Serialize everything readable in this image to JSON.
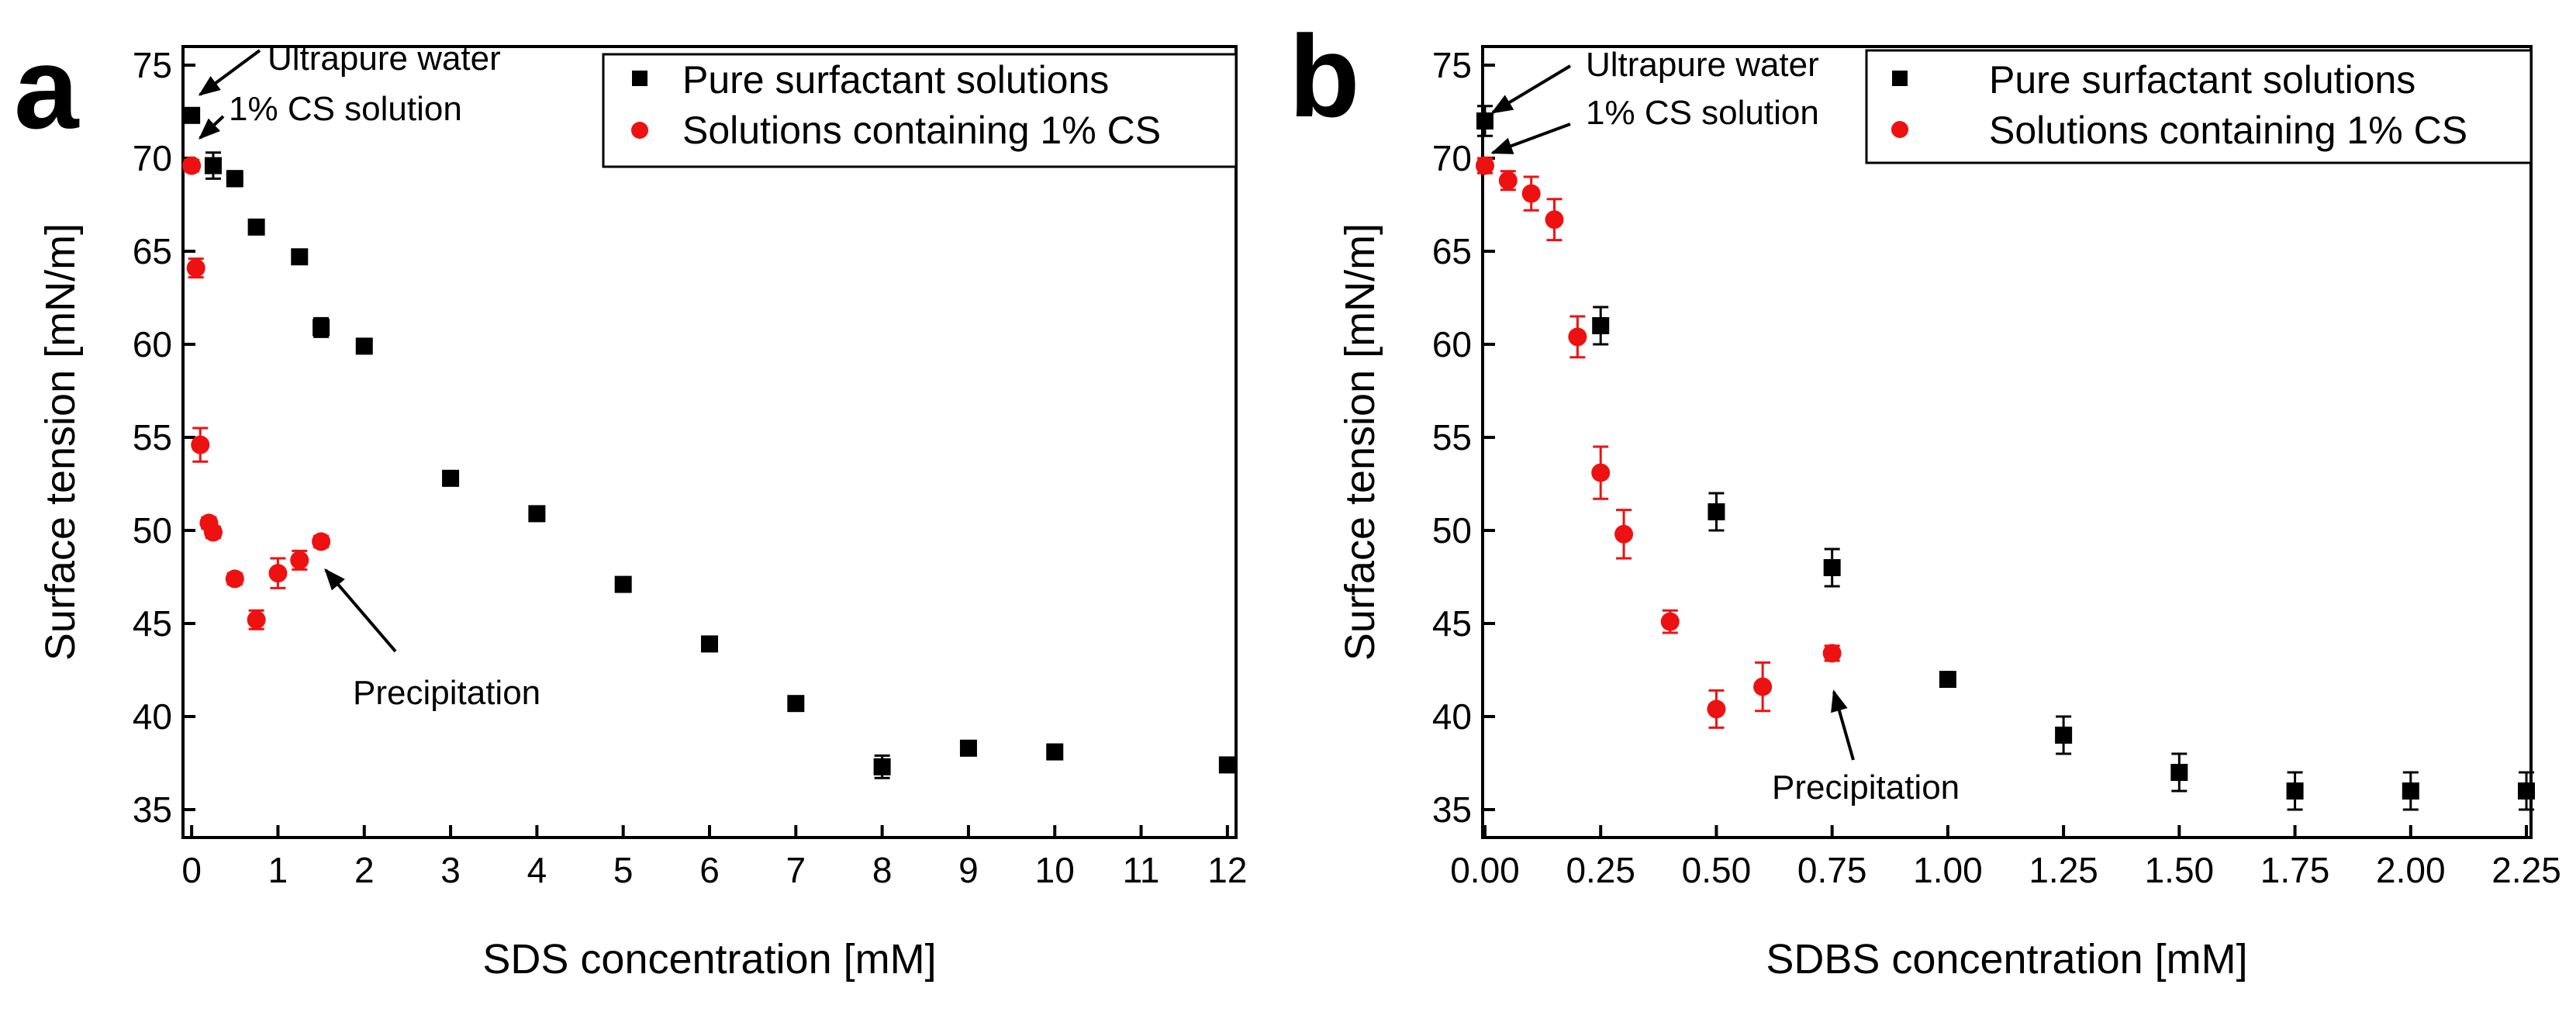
{
  "chart_data": [
    {
      "panel_letter": "a",
      "type": "scatter",
      "xlabel": "SDS concentration [mM]",
      "ylabel": "Surface tension [mN/m]",
      "xlim": [
        -0.1,
        12.1
      ],
      "ylim": [
        33.5,
        76
      ],
      "xticks": [
        0,
        1,
        2,
        3,
        4,
        5,
        6,
        7,
        8,
        9,
        10,
        11,
        12
      ],
      "yticks": [
        35,
        40,
        45,
        50,
        55,
        60,
        65,
        70,
        75
      ],
      "tick_decimals": 0,
      "legend_position": "top-right",
      "colors": {
        "pure": "#000000",
        "cs": "#ee1111"
      },
      "series": [
        {
          "name": "Pure surfactant solutions",
          "marker": "square",
          "color": "#000000",
          "points": [
            {
              "x": 0,
              "y": 72.3,
              "err": 0.3
            },
            {
              "x": 0.25,
              "y": 69.6,
              "err": 0.7
            },
            {
              "x": 0.5,
              "y": 68.9,
              "err": 0.4
            },
            {
              "x": 0.75,
              "y": 66.3,
              "err": 0.3
            },
            {
              "x": 1.25,
              "y": 64.7,
              "err": 0.3
            },
            {
              "x": 1.5,
              "y": 60.9,
              "err": 0.5
            },
            {
              "x": 2,
              "y": 59.9,
              "err": 0.2
            },
            {
              "x": 3,
              "y": 52.8,
              "err": 0.2
            },
            {
              "x": 4,
              "y": 50.9,
              "err": 0.2
            },
            {
              "x": 5,
              "y": 47.1,
              "err": 0.2
            },
            {
              "x": 6,
              "y": 43.9,
              "err": 0.2
            },
            {
              "x": 7,
              "y": 40.7,
              "err": 0.2
            },
            {
              "x": 8,
              "y": 37.3,
              "err": 0.6
            },
            {
              "x": 9,
              "y": 38.3,
              "err": 0.2
            },
            {
              "x": 10,
              "y": 38.1,
              "err": 0.2
            },
            {
              "x": 12,
              "y": 37.4,
              "err": 0.2
            }
          ]
        },
        {
          "name": "Solutions containing 1% CS",
          "marker": "circle",
          "color": "#ee1111",
          "points": [
            {
              "x": 0,
              "y": 69.6,
              "err": 0.3
            },
            {
              "x": 0.05,
              "y": 64.1,
              "err": 0.5
            },
            {
              "x": 0.1,
              "y": 54.6,
              "err": 0.9
            },
            {
              "x": 0.2,
              "y": 50.4,
              "err": 0.3
            },
            {
              "x": 0.25,
              "y": 49.9,
              "err": 0.3
            },
            {
              "x": 0.5,
              "y": 47.4,
              "err": 0.3
            },
            {
              "x": 0.75,
              "y": 45.2,
              "err": 0.5
            },
            {
              "x": 1,
              "y": 47.7,
              "err": 0.8
            },
            {
              "x": 1.25,
              "y": 48.4,
              "err": 0.5
            },
            {
              "x": 1.5,
              "y": 49.4,
              "err": 0.3
            }
          ]
        }
      ],
      "annotations": [
        {
          "text": "Ultrapure water",
          "x": 0,
          "y": 72.3
        },
        {
          "text": "1% CS solution",
          "x": 0.25,
          "y": 69.6
        },
        {
          "text": "Precipitation",
          "x": 1.5,
          "y": 49.4
        }
      ]
    },
    {
      "panel_letter": "b",
      "type": "scatter",
      "xlabel": "SDBS concentration [mM]",
      "ylabel": "Surface tension [mN/m]",
      "xlim": [
        -0.005,
        2.26
      ],
      "ylim": [
        33.5,
        76
      ],
      "xticks": [
        0,
        0.25,
        0.5,
        0.75,
        1,
        1.25,
        1.5,
        1.75,
        2,
        2.25
      ],
      "yticks": [
        35,
        40,
        45,
        50,
        55,
        60,
        65,
        70,
        75
      ],
      "tick_decimals": 2,
      "legend_position": "top-right",
      "colors": {
        "pure": "#000000",
        "cs": "#ee1111"
      },
      "series": [
        {
          "name": "Pure surfactant solutions",
          "marker": "square",
          "color": "#000000",
          "points": [
            {
              "x": 0,
              "y": 72.0,
              "err": 0.8
            },
            {
              "x": 0.25,
              "y": 61.0,
              "err": 1.0
            },
            {
              "x": 0.5,
              "y": 51.0,
              "err": 1.0
            },
            {
              "x": 0.75,
              "y": 48.0,
              "err": 1.0
            },
            {
              "x": 1.0,
              "y": 42.0,
              "err": 0.3
            },
            {
              "x": 1.25,
              "y": 39.0,
              "err": 1.0
            },
            {
              "x": 1.5,
              "y": 37.0,
              "err": 1.0
            },
            {
              "x": 1.75,
              "y": 36.0,
              "err": 1.0
            },
            {
              "x": 2.0,
              "y": 36.0,
              "err": 1.0
            },
            {
              "x": 2.25,
              "y": 36.0,
              "err": 1.0
            }
          ]
        },
        {
          "name": "Solutions containing 1% CS",
          "marker": "circle",
          "color": "#ee1111",
          "points": [
            {
              "x": 0,
              "y": 69.6,
              "err": 0.4
            },
            {
              "x": 0.05,
              "y": 68.8,
              "err": 0.5
            },
            {
              "x": 0.1,
              "y": 68.1,
              "err": 0.9
            },
            {
              "x": 0.15,
              "y": 66.7,
              "err": 1.1
            },
            {
              "x": 0.2,
              "y": 60.4,
              "err": 1.1
            },
            {
              "x": 0.25,
              "y": 53.1,
              "err": 1.4
            },
            {
              "x": 0.3,
              "y": 49.8,
              "err": 1.3
            },
            {
              "x": 0.4,
              "y": 45.1,
              "err": 0.6
            },
            {
              "x": 0.5,
              "y": 40.4,
              "err": 1.0
            },
            {
              "x": 0.6,
              "y": 41.6,
              "err": 1.3
            },
            {
              "x": 0.75,
              "y": 43.4,
              "err": 0.4
            }
          ]
        }
      ],
      "annotations": [
        {
          "text": "Ultrapure water",
          "x": 0,
          "y": 72.0
        },
        {
          "text": "1% CS solution",
          "x": 0,
          "y": 69.6
        },
        {
          "text": "Precipitation",
          "x": 0.75,
          "y": 43.4
        }
      ]
    }
  ]
}
